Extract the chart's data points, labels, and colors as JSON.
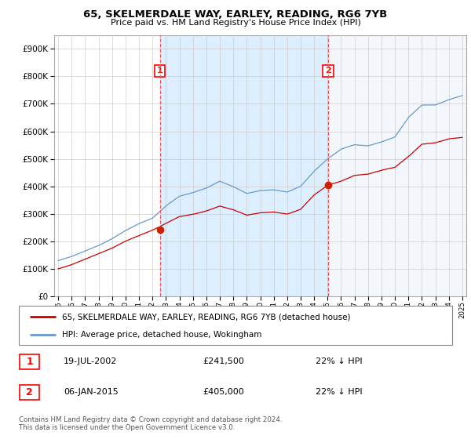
{
  "title": "65, SKELMERDALE WAY, EARLEY, READING, RG6 7YB",
  "subtitle": "Price paid vs. HM Land Registry's House Price Index (HPI)",
  "legend_entries": [
    "65, SKELMERDALE WAY, EARLEY, READING, RG6 7YB (detached house)",
    "HPI: Average price, detached house, Wokingham"
  ],
  "transactions": [
    {
      "num": 1,
      "date": "19-JUL-2002",
      "price": 241500,
      "hpi_pct": "22% ↓ HPI",
      "x_year": 2002.54
    },
    {
      "num": 2,
      "date": "06-JAN-2015",
      "price": 405000,
      "hpi_pct": "22% ↓ HPI",
      "x_year": 2015.04
    }
  ],
  "footnote": "Contains HM Land Registry data © Crown copyright and database right 2024.\nThis data is licensed under the Open Government Licence v3.0.",
  "property_line_color": "#cc0000",
  "hpi_line_color": "#6699cc",
  "vline_color": "#ee5555",
  "shade_color": "#ddeeff",
  "grid_color": "#cccccc",
  "bg_color": "#ffffff",
  "ylim": [
    0,
    950000
  ],
  "yticks": [
    0,
    100000,
    200000,
    300000,
    400000,
    500000,
    600000,
    700000,
    800000,
    900000
  ],
  "xlim_start": 1994.7,
  "xlim_end": 2025.3
}
